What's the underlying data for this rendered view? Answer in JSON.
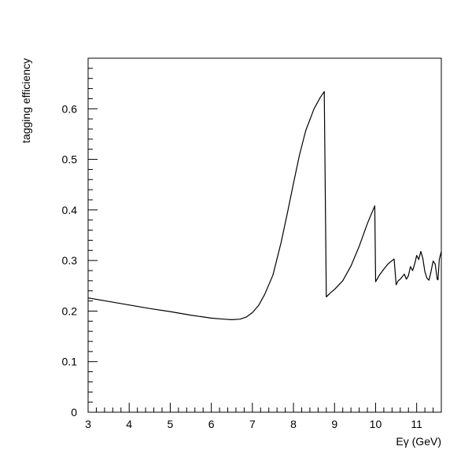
{
  "chart_data": {
    "type": "line",
    "title": "",
    "xlabel": "Eγ (GeV)",
    "ylabel": "tagging efficiency",
    "xlim": [
      3,
      11.6
    ],
    "ylim": [
      0,
      0.7
    ],
    "x_ticks": [
      "3",
      "4",
      "5",
      "6",
      "7",
      "8",
      "9",
      "10",
      "11"
    ],
    "y_ticks": [
      "0",
      "0.1",
      "0.2",
      "0.3",
      "0.4",
      "0.5",
      "0.6"
    ],
    "grid": false,
    "series": [
      {
        "x": [
          3.0,
          3.5,
          4.0,
          4.5,
          5.0,
          5.5,
          6.0,
          6.3,
          6.5,
          6.7,
          6.85,
          7.0,
          7.15,
          7.3,
          7.5,
          7.7,
          7.85,
          8.0,
          8.15,
          8.3,
          8.5,
          8.65,
          8.75,
          8.8,
          8.9,
          9.0,
          9.2,
          9.4,
          9.6,
          9.8,
          9.98,
          10.0,
          10.05,
          10.1,
          10.2,
          10.3,
          10.45,
          10.5,
          10.55,
          10.6,
          10.7,
          10.75,
          10.8,
          10.85,
          10.9,
          10.95,
          11.0,
          11.05,
          11.1,
          11.15,
          11.2,
          11.25,
          11.3,
          11.35,
          11.4,
          11.45,
          11.5,
          11.52,
          11.55,
          11.6
        ],
        "y": [
          0.226,
          0.219,
          0.212,
          0.205,
          0.199,
          0.192,
          0.186,
          0.184,
          0.183,
          0.184,
          0.188,
          0.197,
          0.211,
          0.233,
          0.271,
          0.336,
          0.393,
          0.452,
          0.51,
          0.557,
          0.6,
          0.622,
          0.634,
          0.228,
          0.236,
          0.243,
          0.26,
          0.289,
          0.328,
          0.373,
          0.408,
          0.258,
          0.265,
          0.272,
          0.283,
          0.293,
          0.303,
          0.252,
          0.26,
          0.263,
          0.273,
          0.263,
          0.27,
          0.288,
          0.28,
          0.293,
          0.31,
          0.302,
          0.318,
          0.304,
          0.278,
          0.265,
          0.261,
          0.278,
          0.299,
          0.293,
          0.263,
          0.262,
          0.302,
          0.318
        ]
      }
    ]
  }
}
